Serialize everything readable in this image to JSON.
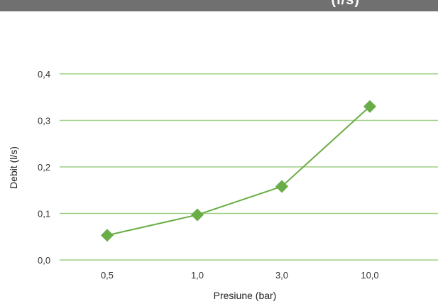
{
  "header": {
    "title_fragment": "(l/s)"
  },
  "chart_data": {
    "type": "line",
    "title": "",
    "xlabel": "Presiune (bar)",
    "ylabel": "Debit (l/s)",
    "categories": [
      "0,5",
      "1,0",
      "3,0",
      "10,0"
    ],
    "series": [
      {
        "values": [
          0.053,
          0.097,
          0.158,
          0.33
        ],
        "color": "#6aad46",
        "marker": "diamond"
      }
    ],
    "yticks": [
      "0,0",
      "0,1",
      "0,2",
      "0,3",
      "0,4"
    ],
    "ylim": [
      0,
      0.4
    ],
    "grid": true,
    "grid_color": "#9fcf86",
    "legend": "none"
  }
}
